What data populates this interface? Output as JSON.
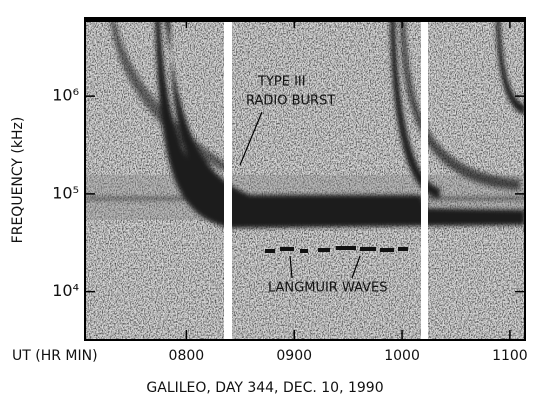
{
  "chart_data": {
    "type": "spectrogram",
    "subtitle": "GALILEO, DAY 344, DEC. 10, 1990",
    "xlabel": "UT (HR MIN)",
    "ylabel": "FREQUENCY (kHz)",
    "xlim": [
      7.06,
      11.14
    ],
    "xticks": [
      {
        "value": 8,
        "label": "0800"
      },
      {
        "value": 9,
        "label": "0900"
      },
      {
        "value": 10,
        "label": "1000"
      },
      {
        "value": 11,
        "label": "1100"
      }
    ],
    "ylim": [
      3200,
      6300000
    ],
    "yticks": [
      {
        "value": 10000,
        "label": "10⁴"
      },
      {
        "value": 100000,
        "label": "10⁵"
      },
      {
        "value": 1000000,
        "label": "10⁶"
      }
    ],
    "log_y": true,
    "annotations": [
      "TYPE III",
      "RADIO BURST",
      "LANGMUIR WAVES"
    ]
  }
}
